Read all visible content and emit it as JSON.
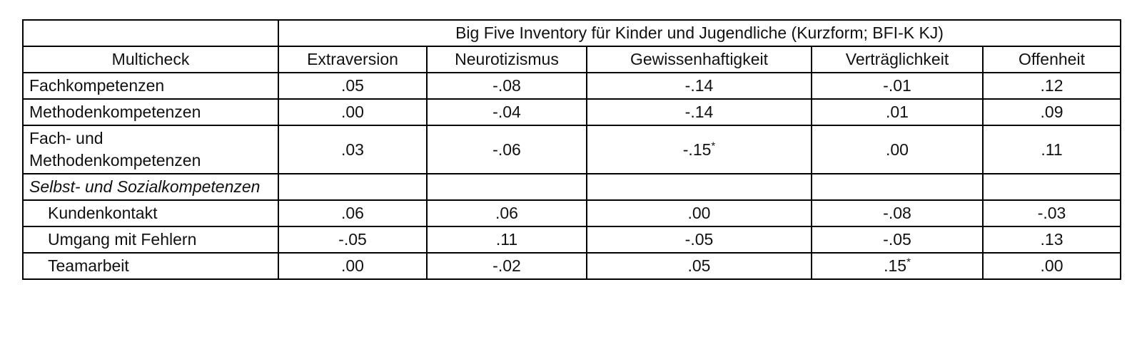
{
  "table": {
    "span_header": "Big Five Inventory für Kinder und Jugendliche (Kurzform; BFI-K KJ)",
    "columns": [
      "Multicheck",
      "Extraversion",
      "Neurotizismus",
      "Gewissenhaftigkeit",
      "Verträglichkeit",
      "Offenheit"
    ],
    "rows": [
      {
        "label": "Fachkompetenzen",
        "values": [
          ".05",
          "-.08",
          "-.14",
          "-.01",
          ".12"
        ]
      },
      {
        "label": "Methodenkompetenzen",
        "values": [
          ".00",
          "-.04",
          "-.14",
          ".01",
          ".09"
        ]
      },
      {
        "label": "Fach- und Methodenkompetenzen",
        "values": [
          ".03",
          "-.06",
          "-.15*",
          ".00",
          ".11"
        ]
      },
      {
        "label": "Selbst- und Sozialkompetenzen",
        "values": [
          "",
          "",
          "",
          "",
          ""
        ]
      },
      {
        "label": "Kundenkontakt",
        "values": [
          ".06",
          ".06",
          ".00",
          "-.08",
          "-.03"
        ]
      },
      {
        "label": "Umgang mit Fehlern",
        "values": [
          "-.05",
          ".11",
          "-.05",
          "-.05",
          ".13"
        ]
      },
      {
        "label": "Teamarbeit",
        "values": [
          ".00",
          "-.02",
          ".05",
          ".15*",
          ".00"
        ]
      }
    ],
    "colors": {
      "border": "#000000",
      "text": "#111111",
      "background": "#ffffff"
    }
  }
}
